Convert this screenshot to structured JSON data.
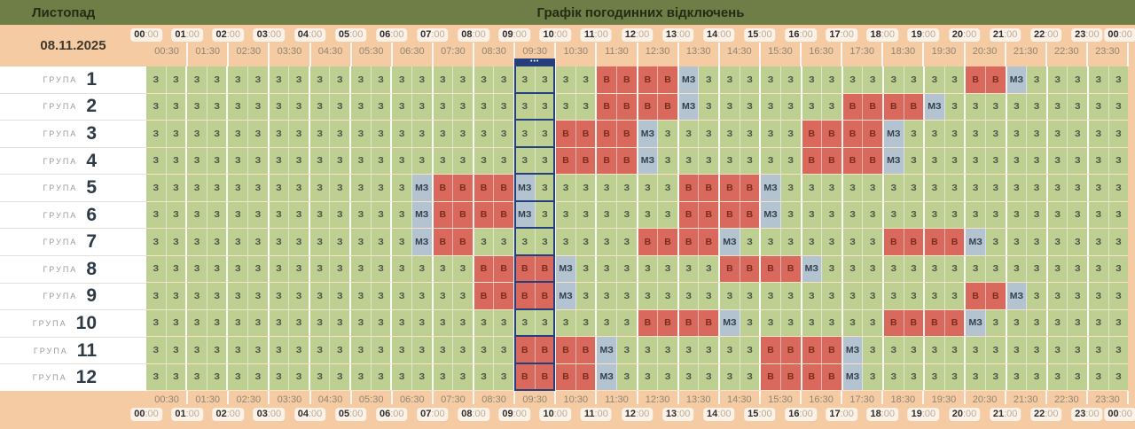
{
  "top_bar": {
    "month_label": "Листопад",
    "title": "Графік погодинних відключень"
  },
  "header": {
    "date": "08.11.2025"
  },
  "colors": {
    "top_bar_bg": "#6f7e46",
    "page_bg": "#f5cba3",
    "labels_column_bg": "#ffffff"
  },
  "chart_data": {
    "type": "heatmap",
    "title": "Графік погодинних відключень",
    "month": "Листопад",
    "date": "08.11.2025",
    "x_axis": {
      "slots_per_row": 48,
      "slot_minutes": 30,
      "hour_ticks": [
        "00:00",
        "01:00",
        "02:00",
        "03:00",
        "04:00",
        "05:00",
        "06:00",
        "07:00",
        "08:00",
        "09:00",
        "10:00",
        "11:00",
        "12:00",
        "13:00",
        "14:00",
        "15:00",
        "16:00",
        "17:00",
        "18:00",
        "19:00",
        "20:00",
        "21:00",
        "22:00",
        "23:00",
        "00:00"
      ],
      "half_hour_ticks": [
        "00:30",
        "01:30",
        "02:30",
        "03:30",
        "04:30",
        "05:30",
        "06:30",
        "07:30",
        "08:30",
        "09:30",
        "10:30",
        "11:30",
        "12:30",
        "13:30",
        "14:30",
        "15:30",
        "16:30",
        "17:30",
        "18:30",
        "19:30",
        "20:30",
        "21:30",
        "22:30",
        "23:30"
      ]
    },
    "state_styles": {
      "З": {
        "bg": "#bdd092",
        "fg": "#4b5446"
      },
      "В": {
        "bg": "#d9695c",
        "fg": "#7d2b1f"
      },
      "МЗ": {
        "bg": "#b4c3d0",
        "fg": "#333f4c"
      }
    },
    "current_time": {
      "slot_start_index": 18,
      "slot_span": 2,
      "marker_dots": "•••",
      "color": "#253e7d"
    },
    "groups": [
      {
        "label": "ГРУПА",
        "number": "1",
        "cells_rle": [
          [
            "З",
            22
          ],
          [
            "В",
            4
          ],
          [
            "МЗ",
            1
          ],
          [
            "З",
            13
          ],
          [
            "В",
            2
          ],
          [
            "МЗ",
            1
          ],
          [
            "З",
            5
          ]
        ]
      },
      {
        "label": "ГРУПА",
        "number": "2",
        "cells_rle": [
          [
            "З",
            22
          ],
          [
            "В",
            4
          ],
          [
            "МЗ",
            1
          ],
          [
            "З",
            7
          ],
          [
            "В",
            4
          ],
          [
            "МЗ",
            1
          ],
          [
            "З",
            9
          ]
        ]
      },
      {
        "label": "ГРУПА",
        "number": "3",
        "cells_rle": [
          [
            "З",
            20
          ],
          [
            "В",
            4
          ],
          [
            "МЗ",
            1
          ],
          [
            "З",
            7
          ],
          [
            "В",
            4
          ],
          [
            "МЗ",
            1
          ],
          [
            "З",
            11
          ]
        ]
      },
      {
        "label": "ГРУПА",
        "number": "4",
        "cells_rle": [
          [
            "З",
            20
          ],
          [
            "В",
            4
          ],
          [
            "МЗ",
            1
          ],
          [
            "З",
            7
          ],
          [
            "В",
            4
          ],
          [
            "МЗ",
            1
          ],
          [
            "З",
            11
          ]
        ]
      },
      {
        "label": "ГРУПА",
        "number": "5",
        "cells_rle": [
          [
            "З",
            13
          ],
          [
            "МЗ",
            1
          ],
          [
            "В",
            4
          ],
          [
            "МЗ",
            1
          ],
          [
            "З",
            7
          ],
          [
            "В",
            4
          ],
          [
            "МЗ",
            1
          ],
          [
            "З",
            17
          ]
        ]
      },
      {
        "label": "ГРУПА",
        "number": "6",
        "cells_rle": [
          [
            "З",
            13
          ],
          [
            "МЗ",
            1
          ],
          [
            "В",
            4
          ],
          [
            "МЗ",
            1
          ],
          [
            "З",
            7
          ],
          [
            "В",
            4
          ],
          [
            "МЗ",
            1
          ],
          [
            "З",
            17
          ]
        ]
      },
      {
        "label": "ГРУПА",
        "number": "7",
        "cells_rle": [
          [
            "З",
            13
          ],
          [
            "МЗ",
            1
          ],
          [
            "В",
            2
          ],
          [
            "З",
            8
          ],
          [
            "В",
            4
          ],
          [
            "МЗ",
            1
          ],
          [
            "З",
            7
          ],
          [
            "В",
            4
          ],
          [
            "МЗ",
            1
          ],
          [
            "З",
            7
          ]
        ]
      },
      {
        "label": "ГРУПА",
        "number": "8",
        "cells_rle": [
          [
            "З",
            16
          ],
          [
            "В",
            4
          ],
          [
            "МЗ",
            1
          ],
          [
            "З",
            7
          ],
          [
            "В",
            4
          ],
          [
            "МЗ",
            1
          ],
          [
            "З",
            15
          ]
        ]
      },
      {
        "label": "ГРУПА",
        "number": "9",
        "cells_rle": [
          [
            "З",
            16
          ],
          [
            "В",
            4
          ],
          [
            "МЗ",
            1
          ],
          [
            "З",
            19
          ],
          [
            "В",
            2
          ],
          [
            "МЗ",
            1
          ],
          [
            "З",
            5
          ]
        ]
      },
      {
        "label": "ГРУПА",
        "number": "10",
        "cells_rle": [
          [
            "З",
            24
          ],
          [
            "В",
            4
          ],
          [
            "МЗ",
            1
          ],
          [
            "З",
            7
          ],
          [
            "В",
            4
          ],
          [
            "МЗ",
            1
          ],
          [
            "З",
            7
          ]
        ]
      },
      {
        "label": "ГРУПА",
        "number": "11",
        "cells_rle": [
          [
            "З",
            18
          ],
          [
            "В",
            4
          ],
          [
            "МЗ",
            1
          ],
          [
            "З",
            7
          ],
          [
            "В",
            4
          ],
          [
            "МЗ",
            1
          ],
          [
            "З",
            13
          ]
        ]
      },
      {
        "label": "ГРУПА",
        "number": "12",
        "cells_rle": [
          [
            "З",
            18
          ],
          [
            "В",
            4
          ],
          [
            "МЗ",
            1
          ],
          [
            "З",
            7
          ],
          [
            "В",
            4
          ],
          [
            "МЗ",
            1
          ],
          [
            "З",
            13
          ]
        ]
      }
    ]
  }
}
